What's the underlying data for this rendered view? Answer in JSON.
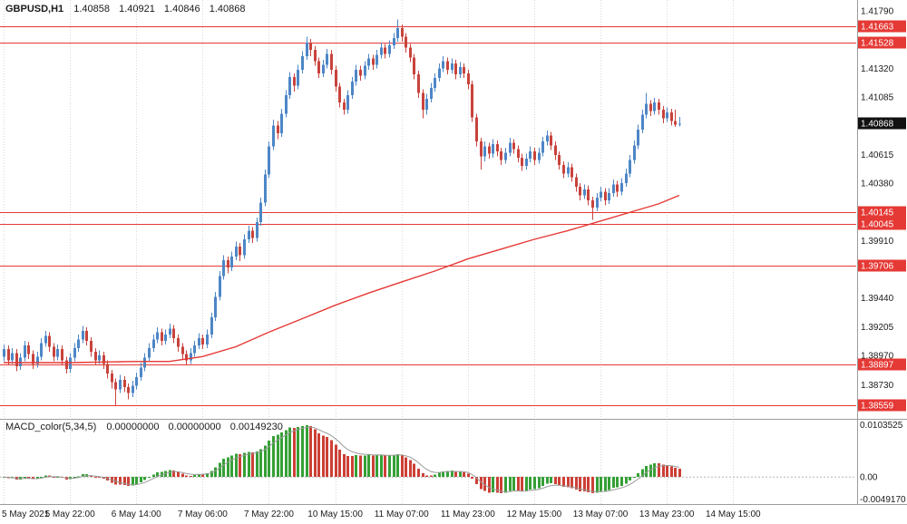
{
  "header": {
    "symbol_period": "GBPUSD,H1",
    "open": "1.40858",
    "high": "1.40921",
    "low": "1.40846",
    "close": "1.40868"
  },
  "indicator_header": {
    "name": "MACD_color(5,34,5)",
    "value1": "0.00000000",
    "value2": "0.00000000",
    "value3": "0.00149230"
  },
  "colors": {
    "up_candle": "#4d86c6",
    "down_candle": "#c8433c",
    "level_line": "#e53935",
    "ma_line": "#e53935",
    "macd_up": "#35a035",
    "macd_down": "#cc4036",
    "macd_signal": "#9a9a9a",
    "grid": "#d9d9d9",
    "axis_text": "#1a1a1a",
    "separator": "#9c9c9c",
    "current_price_badge": "#111111"
  },
  "chart_data": {
    "type": "candlestick",
    "symbol": "GBPUSD",
    "timeframe": "H1",
    "ylim": [
      1.3845,
      1.4188
    ],
    "y_ticks": [
      1.4179,
      1.4132,
      1.41085,
      1.40615,
      1.4038,
      1.3991,
      1.3944,
      1.39205,
      1.3897,
      1.3873
    ],
    "levels": [
      1.41663,
      1.41528,
      1.40145,
      1.40045,
      1.39706,
      1.38897,
      1.38559
    ],
    "current_price": 1.40868,
    "current_bar_ohlc": [
      1.40858,
      1.40921,
      1.40846,
      1.40868
    ],
    "time_labels": [
      {
        "bar": 0,
        "text": "5 May 2021"
      },
      {
        "bar": 16,
        "text": "5 May 22:00"
      },
      {
        "bar": 32,
        "text": "6 May 14:00"
      },
      {
        "bar": 48,
        "text": "7 May 06:00"
      },
      {
        "bar": 64,
        "text": "7 May 22:00"
      },
      {
        "bar": 80,
        "text": "10 May 15:00"
      },
      {
        "bar": 96,
        "text": "11 May 07:00"
      },
      {
        "bar": 112,
        "text": "11 May 23:00"
      },
      {
        "bar": 128,
        "text": "12 May 15:00"
      },
      {
        "bar": 144,
        "text": "13 May 07:00"
      },
      {
        "bar": 160,
        "text": "13 May 23:00"
      },
      {
        "bar": 176,
        "text": "14 May 15:00"
      }
    ],
    "ohlc": [
      [
        1.3896,
        1.3906,
        1.3892,
        1.3902
      ],
      [
        1.3902,
        1.3905,
        1.3889,
        1.3893
      ],
      [
        1.3893,
        1.3903,
        1.389,
        1.3899
      ],
      [
        1.3899,
        1.3902,
        1.3884,
        1.3888
      ],
      [
        1.3888,
        1.3899,
        1.3885,
        1.3895
      ],
      [
        1.3895,
        1.3909,
        1.3892,
        1.3905
      ],
      [
        1.3905,
        1.3908,
        1.3894,
        1.3898
      ],
      [
        1.3898,
        1.3901,
        1.3886,
        1.389
      ],
      [
        1.389,
        1.39,
        1.3887,
        1.3896
      ],
      [
        1.3896,
        1.3911,
        1.3893,
        1.3907
      ],
      [
        1.3907,
        1.3917,
        1.3904,
        1.3913
      ],
      [
        1.3913,
        1.3916,
        1.39,
        1.3904
      ],
      [
        1.3904,
        1.3907,
        1.3892,
        1.3896
      ],
      [
        1.3896,
        1.3906,
        1.3893,
        1.3902
      ],
      [
        1.3902,
        1.3905,
        1.3889,
        1.3893
      ],
      [
        1.3893,
        1.3896,
        1.3882,
        1.3886
      ],
      [
        1.3886,
        1.3899,
        1.3883,
        1.3895
      ],
      [
        1.3895,
        1.3907,
        1.3892,
        1.3903
      ],
      [
        1.3903,
        1.3914,
        1.39,
        1.391
      ],
      [
        1.391,
        1.3921,
        1.3907,
        1.3917
      ],
      [
        1.3917,
        1.392,
        1.3905,
        1.3909
      ],
      [
        1.3909,
        1.3912,
        1.3896,
        1.39
      ],
      [
        1.39,
        1.3903,
        1.3889,
        1.3893
      ],
      [
        1.3893,
        1.3901,
        1.389,
        1.3897
      ],
      [
        1.3897,
        1.39,
        1.3886,
        1.389
      ],
      [
        1.389,
        1.3893,
        1.3878,
        1.3882
      ],
      [
        1.3882,
        1.3885,
        1.387,
        1.3875
      ],
      [
        1.3875,
        1.3878,
        1.3856,
        1.3869
      ],
      [
        1.3869,
        1.3881,
        1.3866,
        1.3877
      ],
      [
        1.3877,
        1.388,
        1.3867,
        1.3871
      ],
      [
        1.3871,
        1.3874,
        1.3861,
        1.3866
      ],
      [
        1.3866,
        1.3876,
        1.3863,
        1.3872
      ],
      [
        1.3872,
        1.3883,
        1.3869,
        1.3879
      ],
      [
        1.3879,
        1.3891,
        1.3876,
        1.3887
      ],
      [
        1.3887,
        1.3899,
        1.3884,
        1.3895
      ],
      [
        1.3895,
        1.3907,
        1.3892,
        1.3903
      ],
      [
        1.3903,
        1.3914,
        1.39,
        1.391
      ],
      [
        1.391,
        1.392,
        1.3907,
        1.3916
      ],
      [
        1.3916,
        1.3919,
        1.3905,
        1.3909
      ],
      [
        1.3909,
        1.3918,
        1.3906,
        1.3914
      ],
      [
        1.3914,
        1.3923,
        1.3911,
        1.3919
      ],
      [
        1.3919,
        1.3922,
        1.3907,
        1.3911
      ],
      [
        1.3911,
        1.3914,
        1.39,
        1.3904
      ],
      [
        1.3904,
        1.3907,
        1.3894,
        1.3898
      ],
      [
        1.3898,
        1.3901,
        1.3889,
        1.3893
      ],
      [
        1.3893,
        1.3903,
        1.389,
        1.3899
      ],
      [
        1.3899,
        1.3909,
        1.3896,
        1.3905
      ],
      [
        1.3905,
        1.3915,
        1.3902,
        1.3911
      ],
      [
        1.3911,
        1.3914,
        1.3902,
        1.3906
      ],
      [
        1.3906,
        1.3918,
        1.3903,
        1.3914
      ],
      [
        1.3914,
        1.3932,
        1.3911,
        1.3928
      ],
      [
        1.3928,
        1.3949,
        1.3925,
        1.3945
      ],
      [
        1.3945,
        1.3966,
        1.3942,
        1.3962
      ],
      [
        1.3962,
        1.3979,
        1.3959,
        1.3975
      ],
      [
        1.3975,
        1.3978,
        1.3964,
        1.3969
      ],
      [
        1.3969,
        1.3982,
        1.3966,
        1.3978
      ],
      [
        1.3978,
        1.399,
        1.3975,
        1.3986
      ],
      [
        1.3986,
        1.3989,
        1.3974,
        1.3979
      ],
      [
        1.3979,
        1.3996,
        1.3976,
        1.3992
      ],
      [
        1.3992,
        1.4003,
        1.3989,
        1.3999
      ],
      [
        1.3999,
        1.4002,
        1.3989,
        1.3993
      ],
      [
        1.3993,
        1.401,
        1.399,
        1.4006
      ],
      [
        1.4006,
        1.4026,
        1.4003,
        1.4022
      ],
      [
        1.4022,
        1.4049,
        1.4019,
        1.4045
      ],
      [
        1.4045,
        1.4072,
        1.4042,
        1.4068
      ],
      [
        1.4068,
        1.409,
        1.4065,
        1.4085
      ],
      [
        1.4085,
        1.4089,
        1.4074,
        1.4079
      ],
      [
        1.4079,
        1.4099,
        1.4076,
        1.4095
      ],
      [
        1.4095,
        1.4114,
        1.4092,
        1.411
      ],
      [
        1.411,
        1.4129,
        1.4107,
        1.4125
      ],
      [
        1.4125,
        1.4128,
        1.4113,
        1.4118
      ],
      [
        1.4118,
        1.4135,
        1.4115,
        1.4131
      ],
      [
        1.4131,
        1.4146,
        1.4128,
        1.4142
      ],
      [
        1.4142,
        1.4158,
        1.4139,
        1.4153
      ],
      [
        1.4153,
        1.4156,
        1.4142,
        1.4147
      ],
      [
        1.4147,
        1.415,
        1.4134,
        1.4138
      ],
      [
        1.4138,
        1.4141,
        1.4124,
        1.4128
      ],
      [
        1.4128,
        1.4139,
        1.4125,
        1.4135
      ],
      [
        1.4135,
        1.4148,
        1.4132,
        1.4144
      ],
      [
        1.4144,
        1.4147,
        1.4127,
        1.4131
      ],
      [
        1.4131,
        1.4134,
        1.4113,
        1.4117
      ],
      [
        1.4117,
        1.412,
        1.41,
        1.4104
      ],
      [
        1.4104,
        1.4107,
        1.4094,
        1.4098
      ],
      [
        1.4098,
        1.4114,
        1.4095,
        1.411
      ],
      [
        1.411,
        1.4125,
        1.4107,
        1.4121
      ],
      [
        1.4121,
        1.4135,
        1.4118,
        1.4131
      ],
      [
        1.4131,
        1.4134,
        1.4122,
        1.4126
      ],
      [
        1.4126,
        1.4138,
        1.4123,
        1.4134
      ],
      [
        1.4134,
        1.4144,
        1.4131,
        1.414
      ],
      [
        1.414,
        1.4143,
        1.4131,
        1.4135
      ],
      [
        1.4135,
        1.4147,
        1.4132,
        1.4143
      ],
      [
        1.4143,
        1.4153,
        1.414,
        1.4149
      ],
      [
        1.4149,
        1.4152,
        1.414,
        1.4144
      ],
      [
        1.4144,
        1.4155,
        1.4141,
        1.4151
      ],
      [
        1.4151,
        1.4161,
        1.4148,
        1.4157
      ],
      [
        1.4157,
        1.4172,
        1.4154,
        1.4165
      ],
      [
        1.4165,
        1.4168,
        1.4154,
        1.4158
      ],
      [
        1.4158,
        1.4161,
        1.4145,
        1.4149
      ],
      [
        1.4149,
        1.4152,
        1.4137,
        1.4141
      ],
      [
        1.4141,
        1.4144,
        1.4123,
        1.4127
      ],
      [
        1.4127,
        1.413,
        1.4108,
        1.4112
      ],
      [
        1.4112,
        1.4115,
        1.4091,
        1.4098
      ],
      [
        1.4098,
        1.4111,
        1.4094,
        1.4107
      ],
      [
        1.4107,
        1.412,
        1.4104,
        1.4116
      ],
      [
        1.4116,
        1.4128,
        1.4113,
        1.4124
      ],
      [
        1.4124,
        1.4136,
        1.4121,
        1.4132
      ],
      [
        1.4132,
        1.4142,
        1.4129,
        1.4138
      ],
      [
        1.4138,
        1.4141,
        1.4127,
        1.4131
      ],
      [
        1.4131,
        1.414,
        1.4128,
        1.4136
      ],
      [
        1.4136,
        1.4139,
        1.4123,
        1.4127
      ],
      [
        1.4127,
        1.4137,
        1.4124,
        1.4133
      ],
      [
        1.4133,
        1.4136,
        1.4124,
        1.4128
      ],
      [
        1.4128,
        1.4131,
        1.4115,
        1.4119
      ],
      [
        1.4119,
        1.4122,
        1.4088,
        1.4092
      ],
      [
        1.4092,
        1.4095,
        1.4068,
        1.4072
      ],
      [
        1.4072,
        1.4075,
        1.4049,
        1.406
      ],
      [
        1.406,
        1.4072,
        1.4056,
        1.4068
      ],
      [
        1.4068,
        1.4071,
        1.4058,
        1.4062
      ],
      [
        1.4062,
        1.4074,
        1.4059,
        1.407
      ],
      [
        1.407,
        1.4073,
        1.406,
        1.4064
      ],
      [
        1.4064,
        1.4067,
        1.4053,
        1.4057
      ],
      [
        1.4057,
        1.4067,
        1.4054,
        1.4063
      ],
      [
        1.4063,
        1.4075,
        1.406,
        1.4071
      ],
      [
        1.4071,
        1.4074,
        1.4062,
        1.4066
      ],
      [
        1.4066,
        1.4069,
        1.4055,
        1.4059
      ],
      [
        1.4059,
        1.4062,
        1.4048,
        1.4052
      ],
      [
        1.4052,
        1.4062,
        1.4049,
        1.4058
      ],
      [
        1.4058,
        1.4068,
        1.4055,
        1.4064
      ],
      [
        1.4064,
        1.4067,
        1.4053,
        1.4057
      ],
      [
        1.4057,
        1.4067,
        1.4054,
        1.4063
      ],
      [
        1.4063,
        1.4076,
        1.406,
        1.4072
      ],
      [
        1.4072,
        1.4081,
        1.4069,
        1.4077
      ],
      [
        1.4077,
        1.408,
        1.4065,
        1.4069
      ],
      [
        1.4069,
        1.4072,
        1.4057,
        1.4061
      ],
      [
        1.4061,
        1.4064,
        1.4049,
        1.4053
      ],
      [
        1.4053,
        1.4056,
        1.4042,
        1.4046
      ],
      [
        1.4046,
        1.4055,
        1.4043,
        1.4051
      ],
      [
        1.4051,
        1.4054,
        1.4039,
        1.4043
      ],
      [
        1.4043,
        1.4046,
        1.4031,
        1.4035
      ],
      [
        1.4035,
        1.4038,
        1.4024,
        1.4028
      ],
      [
        1.4028,
        1.4037,
        1.4025,
        1.4033
      ],
      [
        1.4033,
        1.4036,
        1.402,
        1.4024
      ],
      [
        1.4024,
        1.4027,
        1.4008,
        1.4018
      ],
      [
        1.4018,
        1.403,
        1.4015,
        1.4026
      ],
      [
        1.4026,
        1.4035,
        1.4023,
        1.4031
      ],
      [
        1.4031,
        1.4034,
        1.402,
        1.4024
      ],
      [
        1.4024,
        1.4034,
        1.4021,
        1.403
      ],
      [
        1.403,
        1.4041,
        1.4027,
        1.4037
      ],
      [
        1.4037,
        1.404,
        1.4027,
        1.4031
      ],
      [
        1.4031,
        1.4042,
        1.4028,
        1.4038
      ],
      [
        1.4038,
        1.405,
        1.4035,
        1.4046
      ],
      [
        1.4046,
        1.4061,
        1.4043,
        1.4057
      ],
      [
        1.4057,
        1.4073,
        1.4054,
        1.4069
      ],
      [
        1.4069,
        1.4086,
        1.4066,
        1.4082
      ],
      [
        1.4082,
        1.4098,
        1.4079,
        1.4094
      ],
      [
        1.4094,
        1.4112,
        1.4091,
        1.4103
      ],
      [
        1.4103,
        1.4106,
        1.4093,
        1.4097
      ],
      [
        1.4097,
        1.4108,
        1.4094,
        1.4104
      ],
      [
        1.4104,
        1.4107,
        1.4094,
        1.4098
      ],
      [
        1.4098,
        1.4101,
        1.4087,
        1.4091
      ],
      [
        1.4091,
        1.41,
        1.4088,
        1.4096
      ],
      [
        1.4096,
        1.4099,
        1.4085,
        1.4089
      ],
      [
        1.4089,
        1.4098,
        1.4084,
        1.4086
      ],
      [
        1.40858,
        1.40921,
        1.40846,
        1.40868
      ]
    ],
    "ma_points": [
      [
        0,
        1.3891
      ],
      [
        16,
        1.3891
      ],
      [
        32,
        1.3892
      ],
      [
        40,
        1.3892
      ],
      [
        48,
        1.3896
      ],
      [
        56,
        1.3904
      ],
      [
        64,
        1.3916
      ],
      [
        72,
        1.3927
      ],
      [
        80,
        1.3938
      ],
      [
        88,
        1.3948
      ],
      [
        96,
        1.3957
      ],
      [
        104,
        1.3966
      ],
      [
        112,
        1.3976
      ],
      [
        120,
        1.3984
      ],
      [
        128,
        1.3992
      ],
      [
        136,
        1.3999
      ],
      [
        144,
        1.4007
      ],
      [
        152,
        1.4015
      ],
      [
        158,
        1.4021
      ],
      [
        163,
        1.4028
      ]
    ],
    "indicator": {
      "type": "macd_histogram",
      "name": "MACD_color(5,34,5)",
      "fast": 5,
      "slow": 34,
      "signal": 5,
      "axis_max": 0.0103525,
      "axis_min": -0.004917,
      "axis_labels": [
        "0.0103525",
        "0.00",
        "-0.0049170"
      ],
      "last_histogram_value": 0.0014923
    }
  }
}
